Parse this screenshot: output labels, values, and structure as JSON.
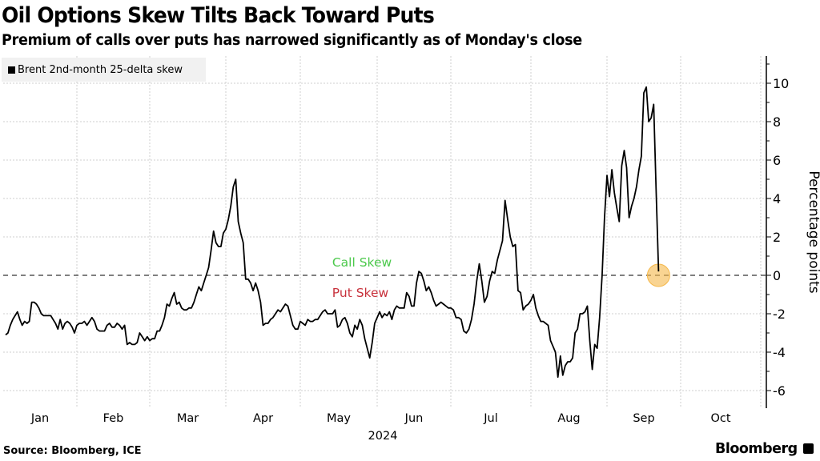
{
  "header": {
    "title": "Oil Options Skew Tilts Back Toward Puts",
    "subtitle": "Premium of calls over puts has narrowed significantly as of Monday's close"
  },
  "footer": {
    "source": "Source: Bloomberg, ICE",
    "brand": "Bloomberg"
  },
  "chart_data": {
    "type": "line",
    "title": "Oil Options Skew Tilts Back Toward Puts",
    "subtitle": "Premium of calls over puts has narrowed significantly as of Monday's close",
    "xlabel": "2024",
    "ylabel": "Percentage points",
    "ylim": [
      -6.5,
      11.5
    ],
    "yticks": [
      -6,
      -4,
      -2,
      0,
      2,
      4,
      6,
      8,
      10
    ],
    "xticks": [
      "Jan",
      "Feb",
      "Mar",
      "Apr",
      "May",
      "Jun",
      "Jul",
      "Aug",
      "Sep",
      "Oct"
    ],
    "x_unit": "day of year 2024",
    "xlim": [
      0,
      307
    ],
    "grid": true,
    "legend": {
      "position": "top-left",
      "entries": [
        "Brent 2nd-month 25-delta skew"
      ]
    },
    "annotations": [
      {
        "text": "Call Skew",
        "color": "#4cc94c",
        "position": "above zero line"
      },
      {
        "text": "Put Skew",
        "color": "#c8323c",
        "position": "below zero line"
      }
    ],
    "highlight": {
      "day": 303,
      "value": 0.2,
      "color": "#f5b84a"
    },
    "reference_line": {
      "value": 0,
      "style": "dashed"
    },
    "series": [
      {
        "name": "Brent 2nd-month 25-delta skew",
        "color": "#000000",
        "points": [
          [
            1,
            -3.1
          ],
          [
            2,
            -3.0
          ],
          [
            3,
            -2.6
          ],
          [
            4,
            -2.3
          ],
          [
            5,
            -2.1
          ],
          [
            6,
            -1.9
          ],
          [
            7,
            -2.3
          ],
          [
            8,
            -2.6
          ],
          [
            9,
            -2.4
          ],
          [
            10,
            -2.5
          ],
          [
            11,
            -2.4
          ],
          [
            12,
            -1.4
          ],
          [
            13,
            -1.4
          ],
          [
            14,
            -1.5
          ],
          [
            15,
            -1.7
          ],
          [
            16,
            -2.0
          ],
          [
            17,
            -2.1
          ],
          [
            18,
            -2.1
          ],
          [
            20,
            -2.1
          ],
          [
            21,
            -2.3
          ],
          [
            22,
            -2.5
          ],
          [
            23,
            -2.8
          ],
          [
            24,
            -2.3
          ],
          [
            25,
            -2.8
          ],
          [
            26,
            -2.5
          ],
          [
            27,
            -2.4
          ],
          [
            28,
            -2.5
          ],
          [
            29,
            -2.7
          ],
          [
            30,
            -3.0
          ],
          [
            31,
            -2.6
          ],
          [
            32,
            -2.5
          ],
          [
            33,
            -2.5
          ],
          [
            34,
            -2.4
          ],
          [
            35,
            -2.6
          ],
          [
            36,
            -2.4
          ],
          [
            37,
            -2.2
          ],
          [
            38,
            -2.4
          ],
          [
            39,
            -2.8
          ],
          [
            40,
            -2.9
          ],
          [
            41,
            -2.9
          ],
          [
            42,
            -2.9
          ],
          [
            43,
            -2.6
          ],
          [
            44,
            -2.5
          ],
          [
            45,
            -2.7
          ],
          [
            46,
            -2.7
          ],
          [
            47,
            -2.5
          ],
          [
            48,
            -2.6
          ],
          [
            49,
            -2.8
          ],
          [
            50,
            -2.6
          ],
          [
            51,
            -3.6
          ],
          [
            52,
            -3.5
          ],
          [
            53,
            -3.6
          ],
          [
            54,
            -3.6
          ],
          [
            55,
            -3.5
          ],
          [
            56,
            -3.0
          ],
          [
            57,
            -3.2
          ],
          [
            58,
            -3.4
          ],
          [
            59,
            -3.2
          ],
          [
            60,
            -3.4
          ],
          [
            61,
            -3.3
          ],
          [
            62,
            -3.3
          ],
          [
            63,
            -2.9
          ],
          [
            64,
            -2.9
          ],
          [
            65,
            -2.6
          ],
          [
            66,
            -2.2
          ],
          [
            67,
            -1.5
          ],
          [
            68,
            -1.6
          ],
          [
            69,
            -1.2
          ],
          [
            70,
            -0.9
          ],
          [
            71,
            -1.5
          ],
          [
            72,
            -1.4
          ],
          [
            73,
            -1.7
          ],
          [
            74,
            -1.8
          ],
          [
            75,
            -1.8
          ],
          [
            76,
            -1.7
          ],
          [
            77,
            -1.7
          ],
          [
            78,
            -1.4
          ],
          [
            79,
            -1.0
          ],
          [
            80,
            -0.6
          ],
          [
            81,
            -0.8
          ],
          [
            82,
            -0.4
          ],
          [
            83,
            0.0
          ],
          [
            84,
            0.4
          ],
          [
            85,
            1.3
          ],
          [
            86,
            2.3
          ],
          [
            87,
            1.7
          ],
          [
            88,
            1.5
          ],
          [
            89,
            1.5
          ],
          [
            90,
            2.2
          ],
          [
            91,
            2.4
          ],
          [
            92,
            2.9
          ],
          [
            93,
            3.6
          ],
          [
            94,
            4.6
          ],
          [
            95,
            5.0
          ],
          [
            96,
            2.8
          ],
          [
            97,
            2.2
          ],
          [
            98,
            1.7
          ],
          [
            99,
            -0.2
          ],
          [
            100,
            -0.2
          ],
          [
            101,
            -0.4
          ],
          [
            102,
            -0.8
          ],
          [
            103,
            -0.4
          ],
          [
            104,
            -0.8
          ],
          [
            105,
            -1.4
          ],
          [
            106,
            -2.6
          ],
          [
            107,
            -2.5
          ],
          [
            108,
            -2.5
          ],
          [
            109,
            -2.3
          ],
          [
            110,
            -2.2
          ],
          [
            111,
            -2.0
          ],
          [
            112,
            -1.8
          ],
          [
            113,
            -1.9
          ],
          [
            114,
            -1.7
          ],
          [
            115,
            -1.5
          ],
          [
            116,
            -1.6
          ],
          [
            117,
            -2.1
          ],
          [
            118,
            -2.6
          ],
          [
            119,
            -2.8
          ],
          [
            120,
            -2.8
          ],
          [
            121,
            -2.4
          ],
          [
            122,
            -2.5
          ],
          [
            123,
            -2.6
          ],
          [
            124,
            -2.3
          ],
          [
            125,
            -2.4
          ],
          [
            126,
            -2.4
          ],
          [
            127,
            -2.3
          ],
          [
            128,
            -2.3
          ],
          [
            129,
            -2.1
          ],
          [
            130,
            -1.9
          ],
          [
            131,
            -1.8
          ],
          [
            132,
            -2.0
          ],
          [
            133,
            -2.0
          ],
          [
            134,
            -2.0
          ],
          [
            135,
            -1.8
          ],
          [
            136,
            -2.7
          ],
          [
            137,
            -2.6
          ],
          [
            138,
            -2.3
          ],
          [
            139,
            -2.2
          ],
          [
            140,
            -2.5
          ],
          [
            141,
            -3.0
          ],
          [
            142,
            -3.2
          ],
          [
            143,
            -2.6
          ],
          [
            144,
            -2.8
          ],
          [
            145,
            -2.3
          ],
          [
            146,
            -2.6
          ],
          [
            147,
            -3.3
          ],
          [
            148,
            -3.8
          ],
          [
            149,
            -4.3
          ],
          [
            150,
            -3.5
          ],
          [
            151,
            -2.5
          ],
          [
            152,
            -2.2
          ],
          [
            153,
            -1.9
          ],
          [
            154,
            -2.2
          ],
          [
            155,
            -2.0
          ],
          [
            156,
            -2.1
          ],
          [
            157,
            -1.9
          ],
          [
            158,
            -2.3
          ],
          [
            159,
            -1.8
          ],
          [
            160,
            -1.6
          ],
          [
            161,
            -1.7
          ],
          [
            162,
            -1.7
          ],
          [
            163,
            -1.7
          ],
          [
            164,
            -0.9
          ],
          [
            165,
            -1.1
          ],
          [
            166,
            -1.6
          ],
          [
            167,
            -1.6
          ],
          [
            168,
            -0.4
          ],
          [
            169,
            0.2
          ],
          [
            170,
            0.1
          ],
          [
            171,
            -0.3
          ],
          [
            172,
            -0.8
          ],
          [
            173,
            -0.6
          ],
          [
            174,
            -0.9
          ],
          [
            175,
            -1.3
          ],
          [
            176,
            -1.6
          ],
          [
            177,
            -1.5
          ],
          [
            178,
            -1.4
          ],
          [
            179,
            -1.5
          ],
          [
            180,
            -1.6
          ],
          [
            181,
            -1.7
          ],
          [
            182,
            -1.7
          ],
          [
            183,
            -1.8
          ],
          [
            184,
            -2.2
          ],
          [
            185,
            -2.2
          ],
          [
            186,
            -2.3
          ],
          [
            187,
            -2.9
          ],
          [
            188,
            -3.0
          ],
          [
            189,
            -2.8
          ],
          [
            190,
            -2.3
          ],
          [
            191,
            -1.5
          ],
          [
            192,
            -0.3
          ],
          [
            193,
            0.6
          ],
          [
            194,
            -0.3
          ],
          [
            195,
            -1.4
          ],
          [
            196,
            -1.1
          ],
          [
            197,
            -0.3
          ],
          [
            198,
            0.2
          ],
          [
            199,
            0.1
          ],
          [
            200,
            0.8
          ],
          [
            201,
            1.3
          ],
          [
            202,
            1.8
          ],
          [
            203,
            3.9
          ],
          [
            204,
            2.9
          ],
          [
            205,
            2.0
          ],
          [
            206,
            1.5
          ],
          [
            207,
            1.6
          ],
          [
            208,
            -0.8
          ],
          [
            209,
            -0.9
          ],
          [
            210,
            -1.8
          ],
          [
            211,
            -1.6
          ],
          [
            212,
            -1.5
          ],
          [
            213,
            -1.3
          ],
          [
            214,
            -1.0
          ],
          [
            215,
            -1.7
          ],
          [
            216,
            -2.1
          ],
          [
            217,
            -2.4
          ],
          [
            218,
            -2.4
          ],
          [
            219,
            -2.5
          ],
          [
            220,
            -2.6
          ],
          [
            221,
            -3.4
          ],
          [
            222,
            -3.7
          ],
          [
            223,
            -4.0
          ],
          [
            224,
            -5.3
          ],
          [
            225,
            -4.2
          ],
          [
            226,
            -5.2
          ],
          [
            227,
            -4.7
          ],
          [
            228,
            -4.5
          ],
          [
            229,
            -4.5
          ],
          [
            230,
            -4.3
          ],
          [
            231,
            -3.0
          ],
          [
            232,
            -2.8
          ],
          [
            233,
            -2.0
          ],
          [
            234,
            -2.0
          ],
          [
            235,
            -1.9
          ],
          [
            236,
            -1.6
          ],
          [
            237,
            -3.4
          ],
          [
            238,
            -4.9
          ],
          [
            239,
            -3.6
          ],
          [
            240,
            -3.8
          ],
          [
            241,
            -2.2
          ],
          [
            242,
            0.0
          ],
          [
            243,
            3.0
          ],
          [
            244,
            5.2
          ],
          [
            245,
            4.1
          ],
          [
            246,
            5.5
          ],
          [
            247,
            4.3
          ],
          [
            248,
            3.5
          ],
          [
            249,
            2.8
          ],
          [
            250,
            5.7
          ],
          [
            251,
            6.5
          ],
          [
            252,
            5.6
          ],
          [
            253,
            3.0
          ],
          [
            254,
            3.6
          ],
          [
            255,
            4.0
          ],
          [
            256,
            4.6
          ],
          [
            257,
            5.5
          ],
          [
            258,
            6.2
          ],
          [
            259,
            9.5
          ],
          [
            260,
            9.8
          ],
          [
            261,
            8.0
          ],
          [
            262,
            8.2
          ],
          [
            263,
            8.9
          ],
          [
            264,
            4.5
          ],
          [
            265,
            0.2
          ]
        ]
      }
    ]
  }
}
